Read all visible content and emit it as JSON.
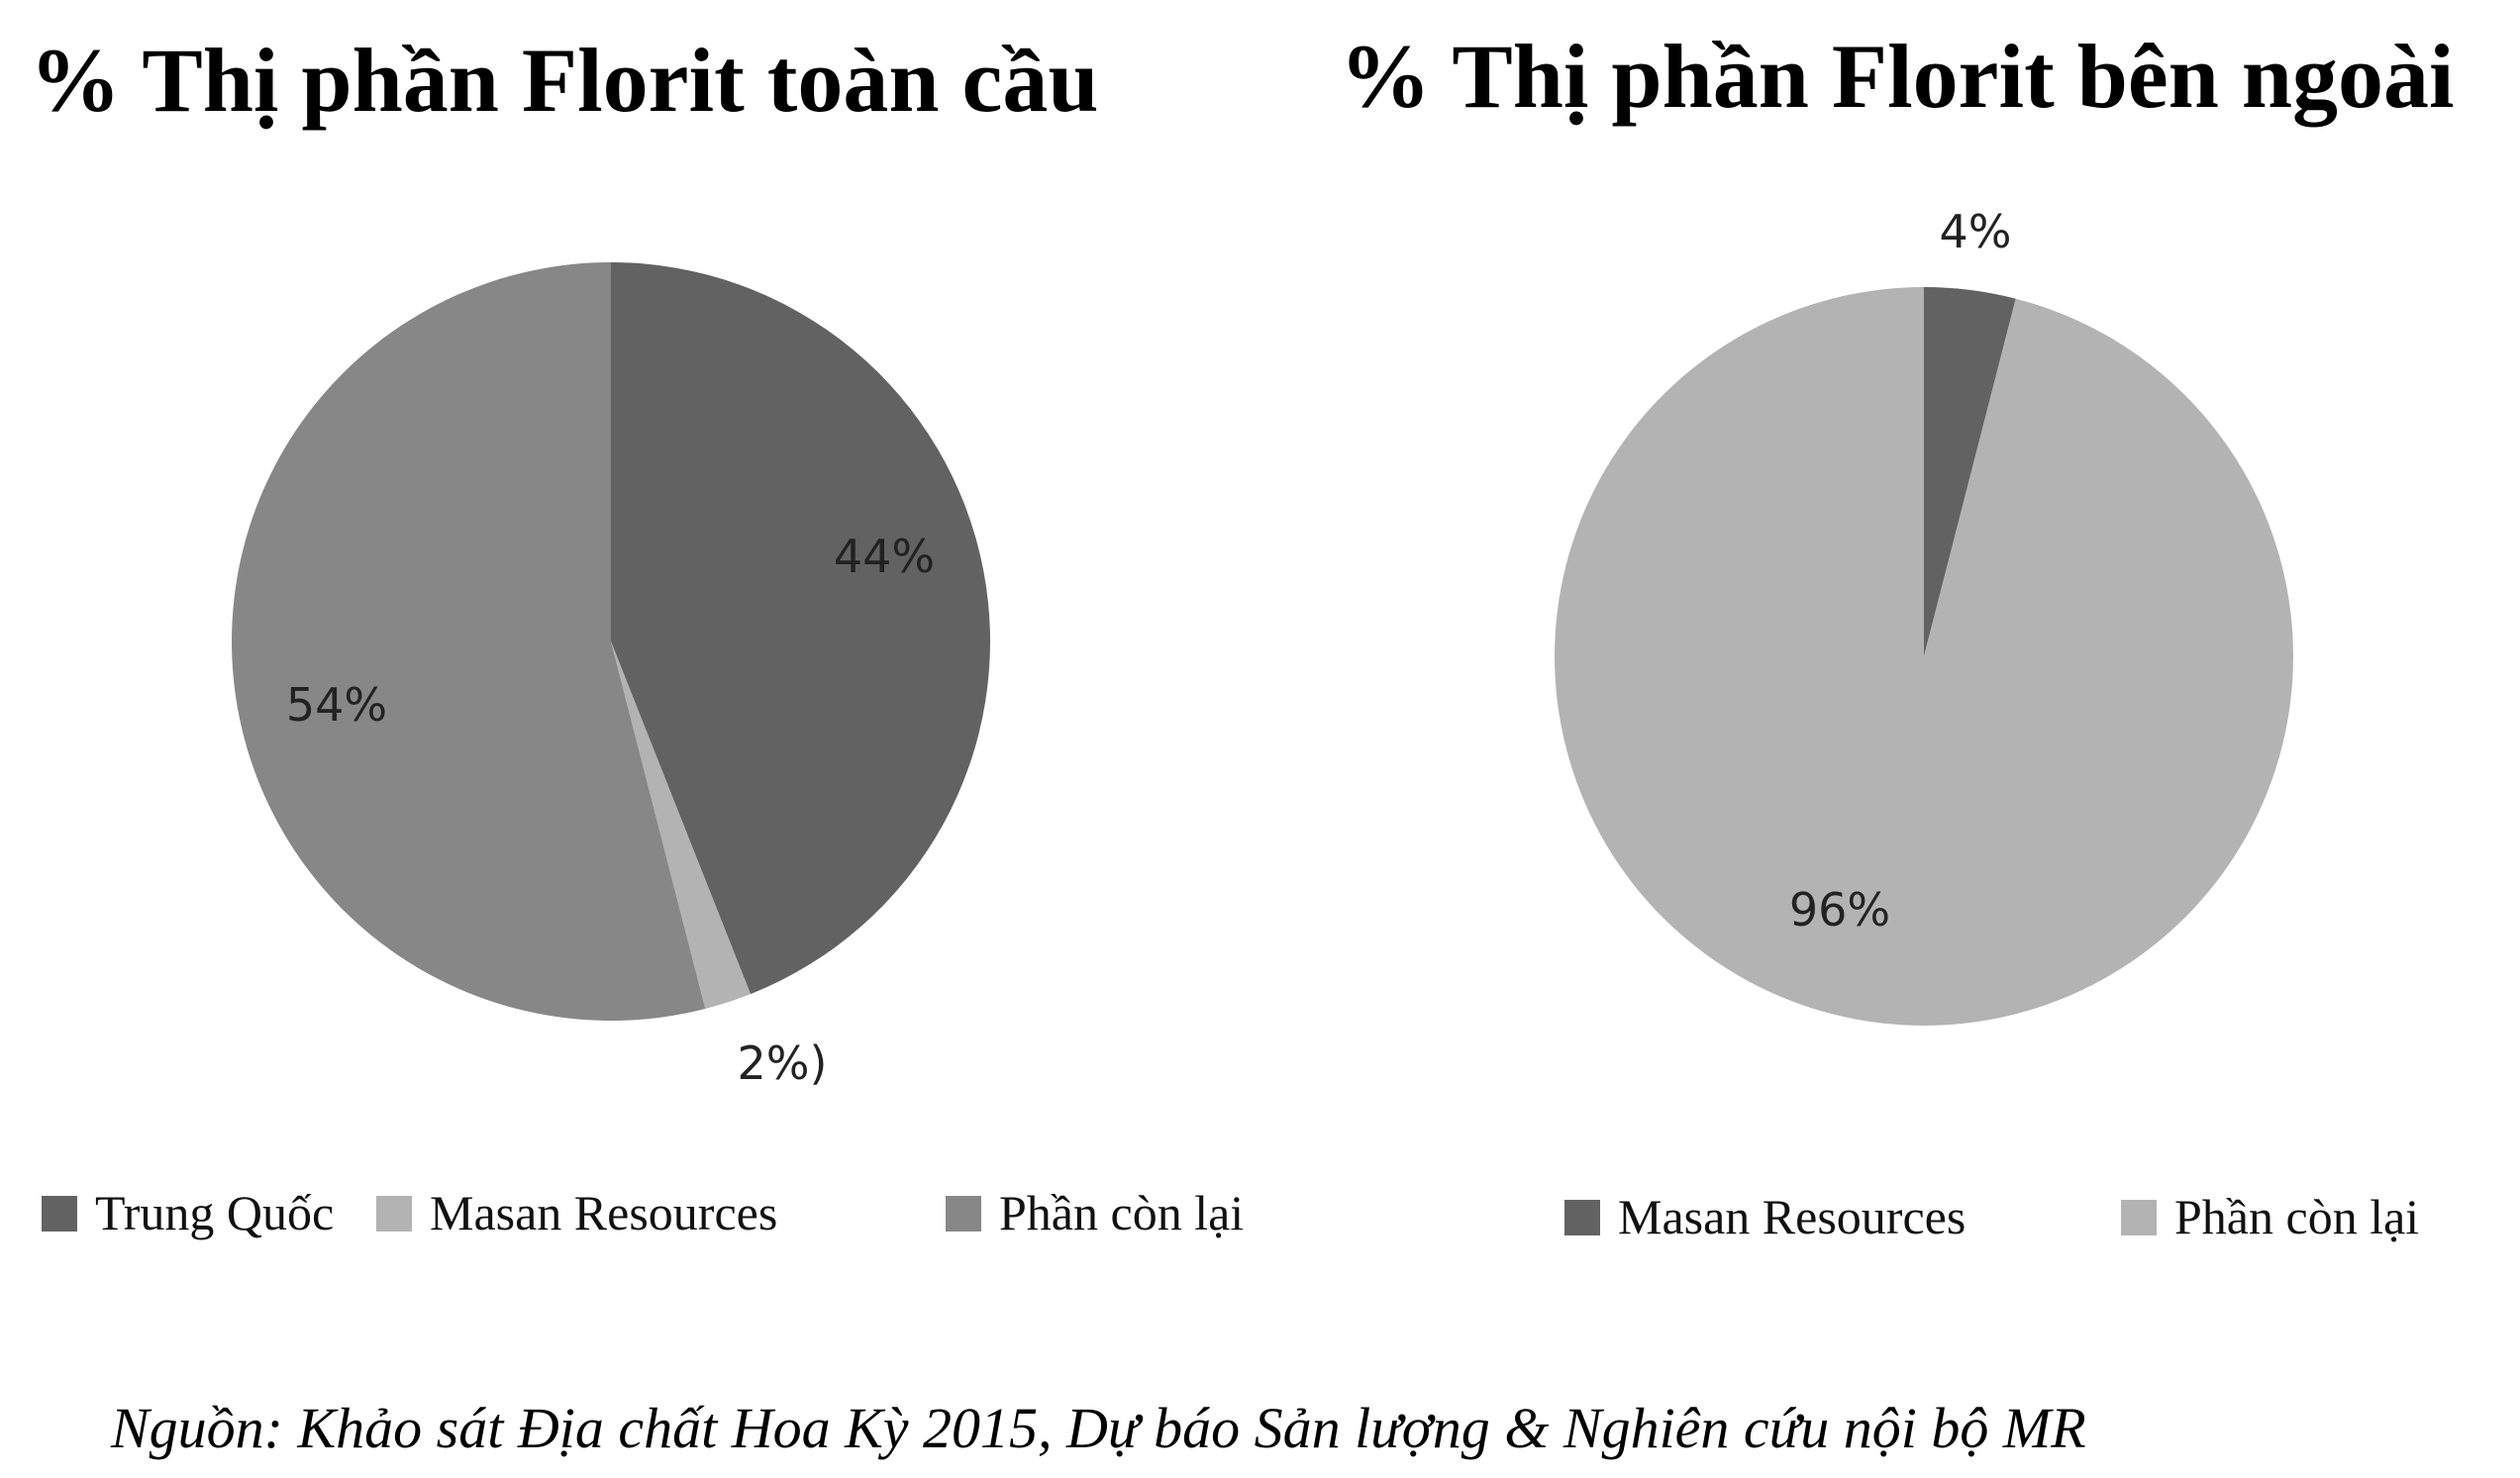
{
  "source": "Nguồn: Khảo sát Địa chất Hoa Kỳ 2015, Dự báo Sản lượng & Nghiên cứu nội bộ MR",
  "chart_data": [
    {
      "type": "pie",
      "title": "% Thị phần Florit toàn cầu",
      "slices": [
        {
          "name": "Trung Quốc",
          "value": 44,
          "label": "44%",
          "color": "#626262"
        },
        {
          "name": "Masan Resources",
          "value": 2,
          "label": "2%)",
          "color": "#b3b3b3"
        },
        {
          "name": "Phần còn lại",
          "value": 54,
          "label": "54%",
          "color": "#878787"
        }
      ],
      "legend": [
        "Trung Quốc",
        "Masan Resources",
        "Phần còn lại"
      ],
      "legend_position": "bottom"
    },
    {
      "type": "pie",
      "title": "% Thị phần Florit bên ngoài",
      "slices": [
        {
          "name": "Masan Resources",
          "value": 4,
          "label": "4%",
          "color": "#626262"
        },
        {
          "name": "Phần còn lại",
          "value": 96,
          "label": "96%",
          "color": "#b3b3b3"
        }
      ],
      "legend": [
        "Masan Resources",
        "Phần còn lại"
      ],
      "legend_position": "bottom"
    }
  ]
}
